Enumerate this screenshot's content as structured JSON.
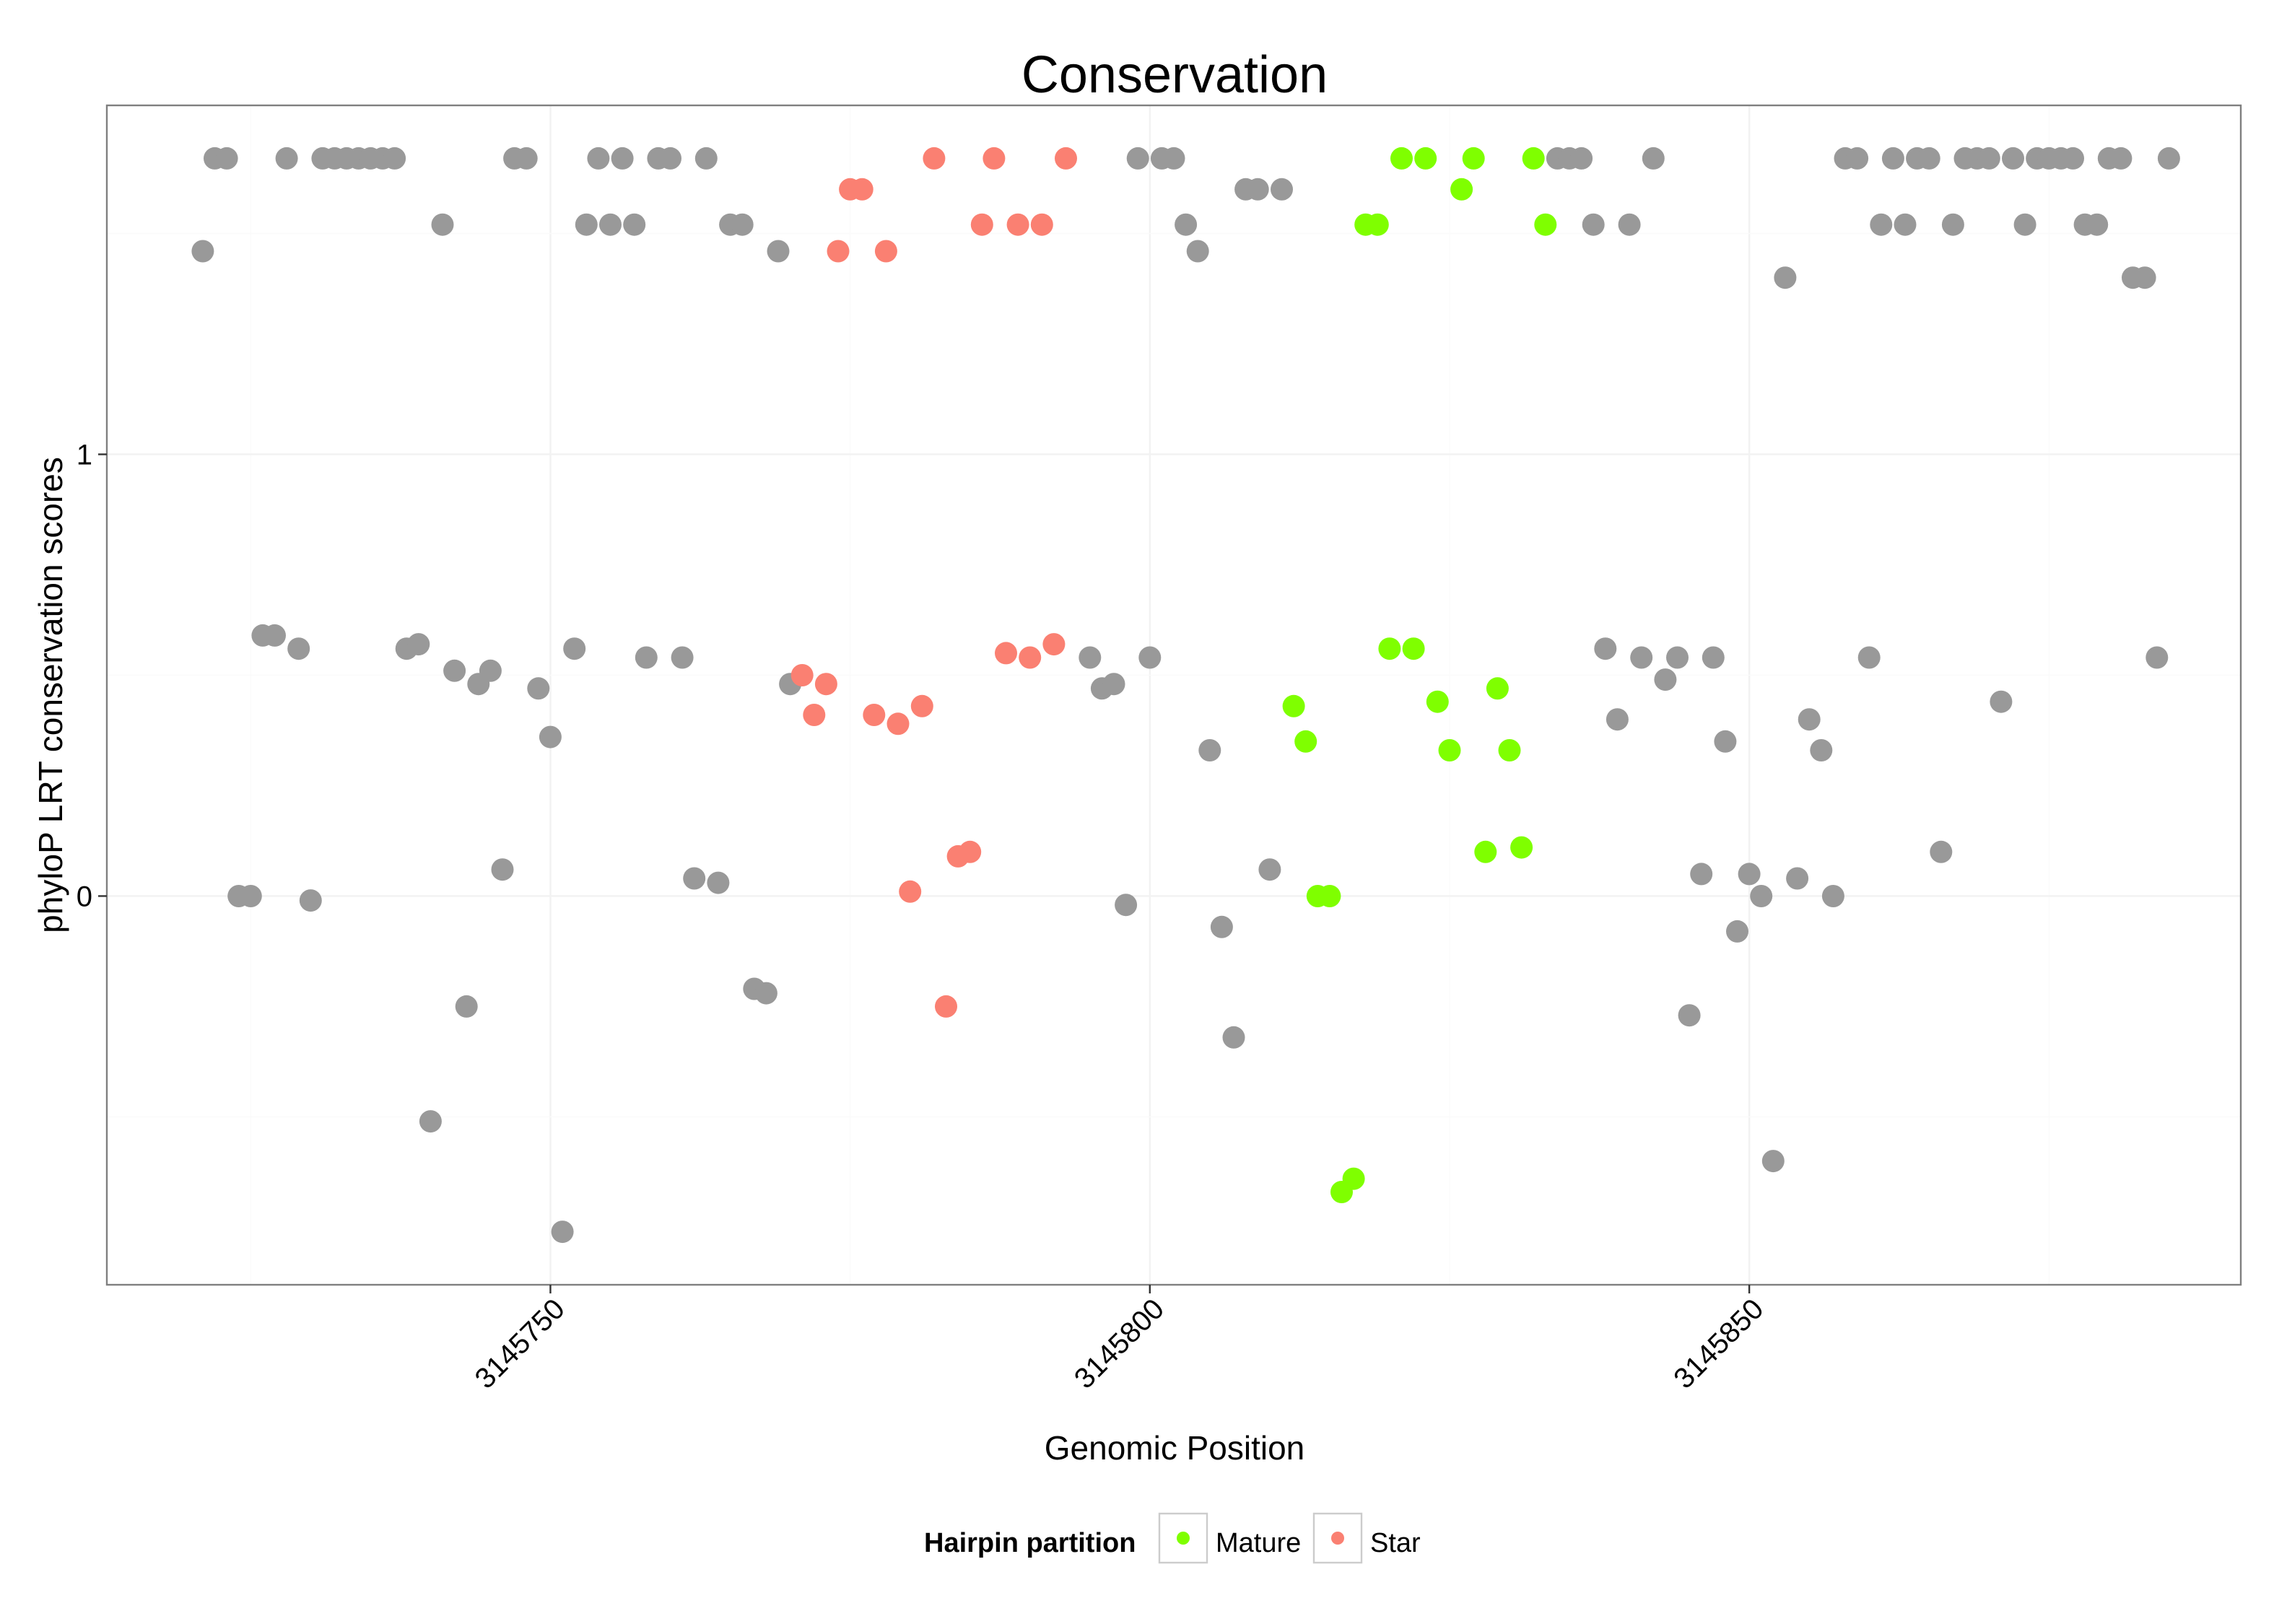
{
  "chart_data": {
    "type": "scatter",
    "title": "Conservation",
    "xlabel": "Genomic Position",
    "ylabel": "phyloP LRT conservation scores",
    "xlim": [
      3145713,
      3145891
    ],
    "ylim": [
      -0.88,
      1.79
    ],
    "x_ticks": [
      3145750,
      3145800,
      3145850
    ],
    "x_tick_labels": [
      "3145750",
      "3145800",
      "3145850"
    ],
    "y_ticks": [
      0,
      1
    ],
    "y_tick_labels": [
      "0",
      "1"
    ],
    "grid": true,
    "legend": {
      "title": "Hairpin partition",
      "position": "bottom",
      "entries": [
        {
          "label": "Mature",
          "color": "#7FFF00"
        },
        {
          "label": "Star",
          "color": "#FA8072"
        }
      ]
    },
    "colors": {
      "none": "#999999",
      "Mature": "#7FFF00",
      "Star": "#FA8072"
    },
    "series": [
      {
        "name": "none",
        "points": [
          [
            3145721,
            1.46
          ],
          [
            3145722,
            1.67
          ],
          [
            3145723,
            1.67
          ],
          [
            3145724,
            0
          ],
          [
            3145725,
            0
          ],
          [
            3145726,
            0.59
          ],
          [
            3145727,
            0.59
          ],
          [
            3145728,
            1.67
          ],
          [
            3145729,
            0.56
          ],
          [
            3145730,
            -0.01
          ],
          [
            3145731,
            1.67
          ],
          [
            3145732,
            1.67
          ],
          [
            3145733,
            1.67
          ],
          [
            3145734,
            1.67
          ],
          [
            3145735,
            1.67
          ],
          [
            3145736,
            1.67
          ],
          [
            3145737,
            1.67
          ],
          [
            3145738,
            0.56
          ],
          [
            3145739,
            0.57
          ],
          [
            3145740,
            -0.51
          ],
          [
            3145741,
            1.52
          ],
          [
            3145742,
            0.51
          ],
          [
            3145743,
            -0.25
          ],
          [
            3145744,
            0.48
          ],
          [
            3145745,
            0.51
          ],
          [
            3145746,
            0.06
          ],
          [
            3145747,
            1.67
          ],
          [
            3145748,
            1.67
          ],
          [
            3145749,
            0.47
          ],
          [
            3145750,
            0.36
          ],
          [
            3145751,
            -0.76
          ],
          [
            3145752,
            0.56
          ],
          [
            3145753,
            1.52
          ],
          [
            3145754,
            1.67
          ],
          [
            3145755,
            1.52
          ],
          [
            3145756,
            1.67
          ],
          [
            3145757,
            1.52
          ],
          [
            3145758,
            0.54
          ],
          [
            3145759,
            1.67
          ],
          [
            3145760,
            1.67
          ],
          [
            3145761,
            0.54
          ],
          [
            3145762,
            0.04
          ],
          [
            3145763,
            1.67
          ],
          [
            3145764,
            0.03
          ],
          [
            3145765,
            1.52
          ],
          [
            3145766,
            1.52
          ],
          [
            3145767,
            -0.21
          ],
          [
            3145768,
            -0.22
          ],
          [
            3145769,
            1.46
          ],
          [
            3145770,
            0.48
          ],
          [
            3145795,
            0.54
          ],
          [
            3145796,
            0.47
          ],
          [
            3145797,
            0.48
          ],
          [
            3145798,
            -0.02
          ],
          [
            3145799,
            1.67
          ],
          [
            3145800,
            0.54
          ],
          [
            3145801,
            1.67
          ],
          [
            3145802,
            1.67
          ],
          [
            3145803,
            1.52
          ],
          [
            3145804,
            1.46
          ],
          [
            3145805,
            0.33
          ],
          [
            3145806,
            -0.07
          ],
          [
            3145807,
            -0.32
          ],
          [
            3145808,
            1.6
          ],
          [
            3145809,
            1.6
          ],
          [
            3145810,
            0.06
          ],
          [
            3145811,
            1.6
          ],
          [
            3145834,
            1.67
          ],
          [
            3145835,
            1.67
          ],
          [
            3145836,
            1.67
          ],
          [
            3145837,
            1.52
          ],
          [
            3145838,
            0.56
          ],
          [
            3145839,
            0.4
          ],
          [
            3145840,
            1.52
          ],
          [
            3145841,
            0.54
          ],
          [
            3145842,
            1.67
          ],
          [
            3145843,
            0.49
          ],
          [
            3145844,
            0.54
          ],
          [
            3145845,
            -0.27
          ],
          [
            3145846,
            0.05
          ],
          [
            3145847,
            0.54
          ],
          [
            3145848,
            0.35
          ],
          [
            3145849,
            -0.08
          ],
          [
            3145850,
            0.05
          ],
          [
            3145851,
            0
          ],
          [
            3145852,
            -0.6
          ],
          [
            3145853,
            1.4
          ],
          [
            3145854,
            0.04
          ],
          [
            3145855,
            0.4
          ],
          [
            3145856,
            0.33
          ],
          [
            3145857,
            0
          ],
          [
            3145858,
            1.67
          ],
          [
            3145859,
            1.67
          ],
          [
            3145860,
            0.54
          ],
          [
            3145861,
            1.52
          ],
          [
            3145862,
            1.67
          ],
          [
            3145863,
            1.52
          ],
          [
            3145864,
            1.67
          ],
          [
            3145865,
            1.67
          ],
          [
            3145866,
            0.1
          ],
          [
            3145867,
            1.52
          ],
          [
            3145868,
            1.67
          ],
          [
            3145869,
            1.67
          ],
          [
            3145870,
            1.67
          ],
          [
            3145871,
            0.44
          ],
          [
            3145872,
            1.67
          ],
          [
            3145873,
            1.52
          ],
          [
            3145874,
            1.67
          ],
          [
            3145875,
            1.67
          ],
          [
            3145876,
            1.67
          ],
          [
            3145877,
            1.67
          ],
          [
            3145878,
            1.52
          ],
          [
            3145879,
            1.52
          ],
          [
            3145880,
            1.67
          ],
          [
            3145881,
            1.67
          ],
          [
            3145882,
            1.4
          ],
          [
            3145883,
            1.4
          ],
          [
            3145884,
            0.54
          ],
          [
            3145885,
            1.67
          ]
        ]
      },
      {
        "name": "Star",
        "points": [
          [
            3145771,
            0.5
          ],
          [
            3145772,
            0.41
          ],
          [
            3145773,
            0.48
          ],
          [
            3145774,
            1.46
          ],
          [
            3145775,
            1.6
          ],
          [
            3145776,
            1.6
          ],
          [
            3145777,
            0.41
          ],
          [
            3145778,
            1.46
          ],
          [
            3145779,
            0.39
          ],
          [
            3145780,
            0.01
          ],
          [
            3145781,
            0.43
          ],
          [
            3145782,
            1.67
          ],
          [
            3145783,
            -0.25
          ],
          [
            3145784,
            0.09
          ],
          [
            3145785,
            0.1
          ],
          [
            3145786,
            1.52
          ],
          [
            3145787,
            1.67
          ],
          [
            3145788,
            0.55
          ],
          [
            3145789,
            1.52
          ],
          [
            3145790,
            0.54
          ],
          [
            3145791,
            1.52
          ],
          [
            3145792,
            0.57
          ],
          [
            3145793,
            1.67
          ]
        ]
      },
      {
        "name": "Mature",
        "points": [
          [
            3145812,
            0.43
          ],
          [
            3145813,
            0.35
          ],
          [
            3145814,
            0
          ],
          [
            3145815,
            0
          ],
          [
            3145816,
            -0.67
          ],
          [
            3145817,
            -0.64
          ],
          [
            3145818,
            1.52
          ],
          [
            3145819,
            1.52
          ],
          [
            3145820,
            0.56
          ],
          [
            3145821,
            1.67
          ],
          [
            3145822,
            0.56
          ],
          [
            3145823,
            1.67
          ],
          [
            3145824,
            0.44
          ],
          [
            3145825,
            0.33
          ],
          [
            3145826,
            1.6
          ],
          [
            3145827,
            1.67
          ],
          [
            3145828,
            0.1
          ],
          [
            3145829,
            0.47
          ],
          [
            3145830,
            0.33
          ],
          [
            3145831,
            0.11
          ],
          [
            3145832,
            1.67
          ],
          [
            3145833,
            1.52
          ]
        ]
      }
    ]
  }
}
